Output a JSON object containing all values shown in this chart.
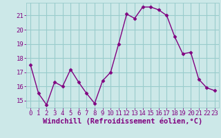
{
  "x": [
    0,
    1,
    2,
    3,
    4,
    5,
    6,
    7,
    8,
    9,
    10,
    11,
    12,
    13,
    14,
    15,
    16,
    17,
    18,
    19,
    20,
    21,
    22,
    23
  ],
  "y": [
    17.5,
    15.5,
    14.7,
    16.3,
    16.0,
    17.2,
    16.3,
    15.5,
    14.8,
    16.4,
    17.0,
    19.0,
    21.1,
    20.8,
    21.6,
    21.6,
    21.4,
    21.0,
    19.5,
    18.3,
    18.4,
    16.5,
    15.9,
    15.7
  ],
  "line_color": "#800080",
  "marker": "D",
  "marker_size": 2.5,
  "bg_color": "#cce8e8",
  "grid_color": "#99cccc",
  "xlabel": "Windchill (Refroidissement éolien,°C)",
  "xlabel_fontsize": 7.5,
  "ylim": [
    14.5,
    21.9
  ],
  "yticks": [
    15,
    16,
    17,
    18,
    19,
    20,
    21
  ],
  "xtick_labels": [
    "0",
    "1",
    "2",
    "3",
    "4",
    "5",
    "6",
    "7",
    "8",
    "9",
    "10",
    "11",
    "12",
    "13",
    "14",
    "15",
    "16",
    "17",
    "18",
    "19",
    "20",
    "21",
    "22",
    "23"
  ],
  "tick_fontsize": 6.5,
  "line_width": 1.0
}
